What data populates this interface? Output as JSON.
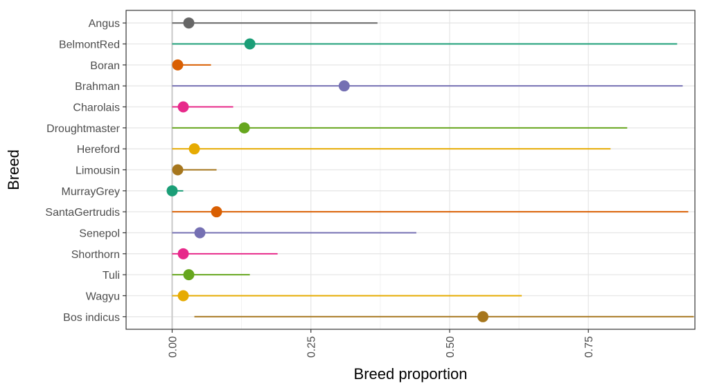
{
  "chart_data": {
    "type": "dot-range",
    "xlabel": "Breed proportion",
    "ylabel": "Breed",
    "xlim": [
      -0.083,
      0.942
    ],
    "x_ticks": [
      0.0,
      0.25,
      0.5,
      0.75
    ],
    "x_tick_labels": [
      "0.00",
      "0.25",
      "0.50",
      "0.75"
    ],
    "grid": true,
    "reference_line": 0.0,
    "categories": [
      "Angus",
      "BelmontRed",
      "Boran",
      "Brahman",
      "Charolais",
      "Droughtmaster",
      "Hereford",
      "Limousin",
      "MurrayGrey",
      "SantaGertrudis",
      "Senepol",
      "Shorthorn",
      "Tuli",
      "Wagyu",
      "Bos indicus"
    ],
    "series": [
      {
        "category": "Angus",
        "point": 0.03,
        "low": 0.0,
        "high": 0.37,
        "color": "#666666"
      },
      {
        "category": "BelmontRed",
        "point": 0.14,
        "low": 0.0,
        "high": 0.91,
        "color": "#1b9e77"
      },
      {
        "category": "Boran",
        "point": 0.01,
        "low": 0.0,
        "high": 0.07,
        "color": "#d95f02"
      },
      {
        "category": "Brahman",
        "point": 0.31,
        "low": 0.0,
        "high": 0.92,
        "color": "#7570b3"
      },
      {
        "category": "Charolais",
        "point": 0.02,
        "low": 0.0,
        "high": 0.11,
        "color": "#e7298a"
      },
      {
        "category": "Droughtmaster",
        "point": 0.13,
        "low": 0.0,
        "high": 0.82,
        "color": "#66a61e"
      },
      {
        "category": "Hereford",
        "point": 0.04,
        "low": 0.0,
        "high": 0.79,
        "color": "#e6ab02"
      },
      {
        "category": "Limousin",
        "point": 0.01,
        "low": 0.0,
        "high": 0.08,
        "color": "#a6761d"
      },
      {
        "category": "MurrayGrey",
        "point": 0.0,
        "low": 0.0,
        "high": 0.02,
        "color": "#1b9e77"
      },
      {
        "category": "SantaGertrudis",
        "point": 0.08,
        "low": 0.0,
        "high": 0.93,
        "color": "#d95f02"
      },
      {
        "category": "Senepol",
        "point": 0.05,
        "low": 0.0,
        "high": 0.44,
        "color": "#7570b3"
      },
      {
        "category": "Shorthorn",
        "point": 0.02,
        "low": 0.0,
        "high": 0.19,
        "color": "#e7298a"
      },
      {
        "category": "Tuli",
        "point": 0.03,
        "low": 0.0,
        "high": 0.14,
        "color": "#66a61e"
      },
      {
        "category": "Wagyu",
        "point": 0.02,
        "low": 0.0,
        "high": 0.63,
        "color": "#e6ab02"
      },
      {
        "category": "Bos indicus",
        "point": 0.56,
        "low": 0.04,
        "high": 0.94,
        "color": "#a6761d"
      }
    ]
  }
}
